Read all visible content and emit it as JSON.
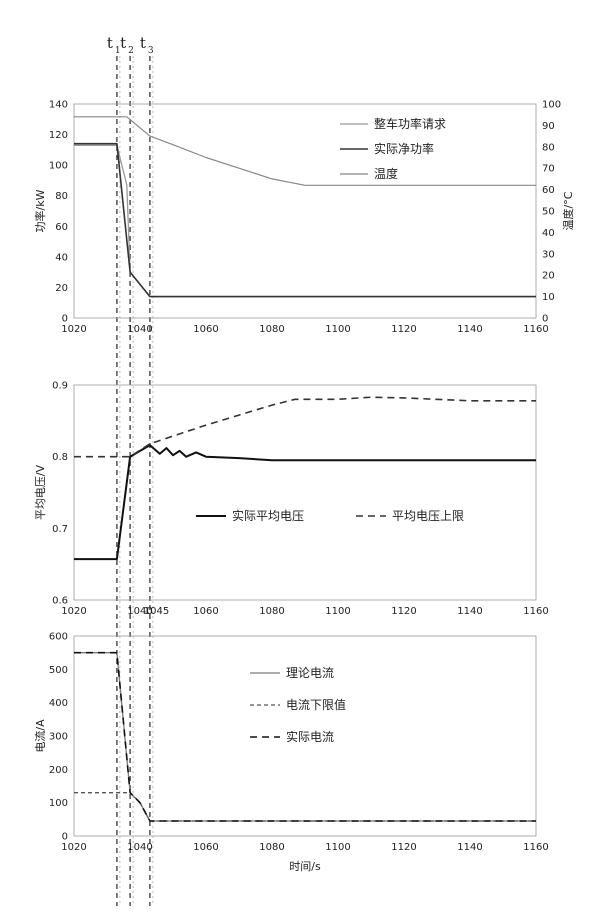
{
  "time_markers": [
    {
      "label": "t",
      "sub": "1",
      "x": 1033
    },
    {
      "label": "t",
      "sub": "2",
      "x": 1037
    },
    {
      "label": "t",
      "sub": "3",
      "x": 1043
    }
  ],
  "chart_data": [
    {
      "type": "line",
      "xlim": [
        1020,
        1160
      ],
      "xticks": [
        1020,
        1040,
        1060,
        1080,
        1100,
        1120,
        1140,
        1160
      ],
      "ylabel": "功率/kW",
      "ylim": [
        0,
        140
      ],
      "yticks": [
        0,
        20,
        40,
        60,
        80,
        100,
        120,
        140
      ],
      "y2label": "温度/°C",
      "y2lim": [
        0,
        100
      ],
      "y2ticks": [
        0,
        10,
        20,
        30,
        40,
        50,
        60,
        70,
        80,
        90,
        100
      ],
      "legend_position": "top-right",
      "series": [
        {
          "name": "整车功率请求",
          "axis": "left",
          "color": "#9a9a9a",
          "width": 1.3,
          "dash": "",
          "points": [
            [
              1020,
              113
            ],
            [
              1033,
              113
            ],
            [
              1036,
              87
            ],
            [
              1037,
              30
            ],
            [
              1040,
              22
            ],
            [
              1043,
              14
            ],
            [
              1160,
              14
            ]
          ]
        },
        {
          "name": "实际净功率",
          "axis": "left",
          "color": "#333333",
          "width": 1.6,
          "dash": "",
          "points": [
            [
              1020,
              114
            ],
            [
              1033,
              114
            ],
            [
              1037,
              30
            ],
            [
              1040,
              22
            ],
            [
              1043,
              14
            ],
            [
              1160,
              14
            ]
          ]
        },
        {
          "name": "温度",
          "axis": "right",
          "color": "#888888",
          "width": 1.2,
          "dash": "",
          "points": [
            [
              1020,
              94
            ],
            [
              1036,
              94
            ],
            [
              1043,
              85
            ],
            [
              1050,
              81
            ],
            [
              1060,
              75
            ],
            [
              1070,
              70
            ],
            [
              1080,
              65
            ],
            [
              1090,
              62
            ],
            [
              1100,
              62
            ],
            [
              1110,
              62
            ],
            [
              1120,
              62
            ],
            [
              1140,
              62
            ],
            [
              1160,
              62
            ]
          ]
        }
      ]
    },
    {
      "type": "line",
      "xlim": [
        1020,
        1160
      ],
      "xticks": [
        1020,
        1040,
        1045,
        1060,
        1080,
        1100,
        1120,
        1140,
        1160
      ],
      "xticklabels": [
        "1020",
        "1040",
        "1045",
        "1060",
        "1080",
        "1100",
        "1120",
        "1140",
        "1160"
      ],
      "ylabel": "平均电压/V",
      "ylim": [
        0.6,
        0.9
      ],
      "yticks": [
        0.6,
        0.7,
        0.8,
        0.9
      ],
      "yticklabels": [
        "0.6",
        "0.7",
        "0.8",
        "0.9"
      ],
      "legend_position": "middle",
      "series": [
        {
          "name": "实际平均电压",
          "color": "#111111",
          "width": 2,
          "dash": "",
          "points": [
            [
              1020,
              0.657
            ],
            [
              1033,
              0.657
            ],
            [
              1037,
              0.8
            ],
            [
              1040,
              0.808
            ],
            [
              1043,
              0.816
            ],
            [
              1046,
              0.804
            ],
            [
              1048,
              0.812
            ],
            [
              1050,
              0.802
            ],
            [
              1052,
              0.808
            ],
            [
              1054,
              0.8
            ],
            [
              1057,
              0.806
            ],
            [
              1060,
              0.8
            ],
            [
              1070,
              0.798
            ],
            [
              1080,
              0.795
            ],
            [
              1090,
              0.795
            ],
            [
              1100,
              0.795
            ],
            [
              1160,
              0.795
            ]
          ]
        },
        {
          "name": "平均电压上限",
          "color": "#333333",
          "width": 1.6,
          "dash": "7,5",
          "points": [
            [
              1020,
              0.8
            ],
            [
              1037,
              0.8
            ],
            [
              1043,
              0.818
            ],
            [
              1060,
              0.844
            ],
            [
              1070,
              0.858
            ],
            [
              1080,
              0.872
            ],
            [
              1087,
              0.88
            ],
            [
              1100,
              0.88
            ],
            [
              1110,
              0.883
            ],
            [
              1120,
              0.882
            ],
            [
              1140,
              0.878
            ],
            [
              1160,
              0.878
            ]
          ]
        }
      ]
    },
    {
      "type": "line",
      "xlim": [
        1020,
        1160
      ],
      "xticks": [
        1020,
        1040,
        1060,
        1080,
        1100,
        1120,
        1140,
        1160
      ],
      "xlabel": "时间/s",
      "ylabel": "电流/A",
      "ylim": [
        0,
        600
      ],
      "yticks": [
        0,
        100,
        200,
        300,
        400,
        500,
        600
      ],
      "legend_position": "top-right",
      "series": [
        {
          "name": "理论电流",
          "color": "#7a7a7a",
          "width": 1.3,
          "dash": "",
          "points": [
            [
              1020,
              550
            ],
            [
              1033,
              550
            ],
            [
              1037,
              130
            ],
            [
              1040,
              100
            ],
            [
              1043,
              45
            ],
            [
              1160,
              45
            ]
          ]
        },
        {
          "name": "电流下限值",
          "color": "#555555",
          "width": 1.3,
          "dash": "4,3",
          "points": [
            [
              1020,
              130
            ],
            [
              1037,
              130
            ],
            [
              1040,
              100
            ],
            [
              1043,
              45
            ],
            [
              1160,
              45
            ]
          ]
        },
        {
          "name": "实际电流",
          "color": "#111111",
          "width": 1.6,
          "dash": "7,5",
          "points": [
            [
              1020,
              550
            ],
            [
              1033,
              550
            ],
            [
              1037,
              130
            ],
            [
              1040,
              100
            ],
            [
              1043,
              45
            ],
            [
              1160,
              45
            ]
          ]
        }
      ]
    }
  ]
}
